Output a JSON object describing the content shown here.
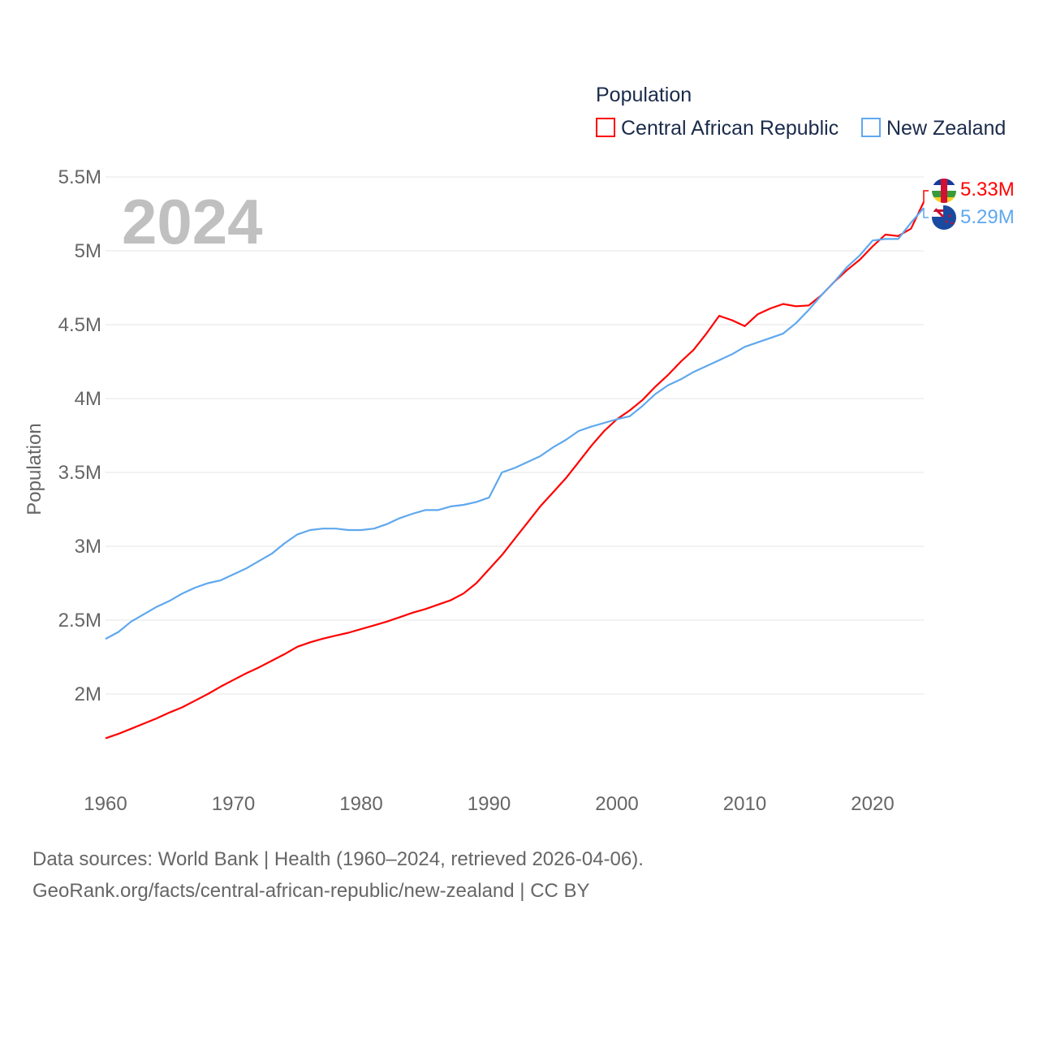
{
  "chart_data": {
    "type": "line",
    "title": "Population",
    "ylabel": "Population",
    "xlabel": "",
    "watermark_year": "2024",
    "xlim": [
      1960,
      2024
    ],
    "ylim": [
      1.5,
      5.5
    ],
    "x_ticks": [
      1960,
      1970,
      1980,
      1990,
      2000,
      2010,
      2020
    ],
    "x_tick_labels": [
      "1960",
      "1970",
      "1980",
      "1990",
      "2000",
      "2010",
      "2020"
    ],
    "y_ticks": [
      2,
      2.5,
      3,
      3.5,
      4,
      4.5,
      5,
      5.5
    ],
    "y_tick_labels": [
      "2M",
      "2.5M",
      "3M",
      "3.5M",
      "4M",
      "4.5M",
      "5M",
      "5.5M"
    ],
    "grid": true,
    "legend_placement": "top-right",
    "x": [
      1960,
      1961,
      1962,
      1963,
      1964,
      1965,
      1966,
      1967,
      1968,
      1969,
      1970,
      1971,
      1972,
      1973,
      1974,
      1975,
      1976,
      1977,
      1978,
      1979,
      1980,
      1981,
      1982,
      1983,
      1984,
      1985,
      1986,
      1987,
      1988,
      1989,
      1990,
      1991,
      1992,
      1993,
      1994,
      1995,
      1996,
      1997,
      1998,
      1999,
      2000,
      2001,
      2002,
      2003,
      2004,
      2005,
      2006,
      2007,
      2008,
      2009,
      2010,
      2011,
      2012,
      2013,
      2014,
      2015,
      2016,
      2017,
      2018,
      2019,
      2020,
      2021,
      2022,
      2023,
      2024
    ],
    "series": [
      {
        "name": "Central African Republic",
        "color": "#ff0000",
        "end_label": "5.33M",
        "flag": "central-african-republic",
        "values": [
          1.7,
          1.73,
          1.765,
          1.8,
          1.835,
          1.875,
          1.91,
          1.955,
          2.0,
          2.05,
          2.095,
          2.14,
          2.18,
          2.225,
          2.27,
          2.32,
          2.35,
          2.375,
          2.395,
          2.415,
          2.44,
          2.465,
          2.49,
          2.52,
          2.55,
          2.575,
          2.605,
          2.635,
          2.68,
          2.75,
          2.845,
          2.94,
          3.05,
          3.16,
          3.27,
          3.365,
          3.46,
          3.57,
          3.68,
          3.78,
          3.86,
          3.92,
          3.99,
          4.08,
          4.16,
          4.25,
          4.33,
          4.44,
          4.56,
          4.53,
          4.49,
          4.57,
          4.61,
          4.64,
          4.625,
          4.63,
          4.7,
          4.79,
          4.87,
          4.94,
          5.03,
          5.11,
          5.1,
          5.15,
          5.33
        ]
      },
      {
        "name": "New Zealand",
        "color": "#5fa8ee",
        "end_label": "5.29M",
        "flag": "new-zealand",
        "values": [
          2.373,
          2.42,
          2.49,
          2.54,
          2.59,
          2.63,
          2.68,
          2.72,
          2.75,
          2.77,
          2.81,
          2.85,
          2.9,
          2.95,
          3.02,
          3.08,
          3.11,
          3.12,
          3.12,
          3.11,
          3.11,
          3.12,
          3.15,
          3.19,
          3.22,
          3.245,
          3.245,
          3.27,
          3.28,
          3.3,
          3.33,
          3.5,
          3.53,
          3.57,
          3.61,
          3.67,
          3.72,
          3.78,
          3.81,
          3.835,
          3.86,
          3.88,
          3.95,
          4.03,
          4.09,
          4.13,
          4.18,
          4.22,
          4.26,
          4.3,
          4.35,
          4.38,
          4.41,
          4.44,
          4.51,
          4.6,
          4.7,
          4.79,
          4.89,
          4.97,
          5.07,
          5.08,
          5.08,
          5.19,
          5.29
        ]
      }
    ]
  },
  "footer": {
    "line1": "Data sources: World Bank | Health (1960–2024, retrieved 2026-04-06).",
    "line2": "GeoRank.org/facts/central-african-republic/new-zealand | CC BY"
  }
}
